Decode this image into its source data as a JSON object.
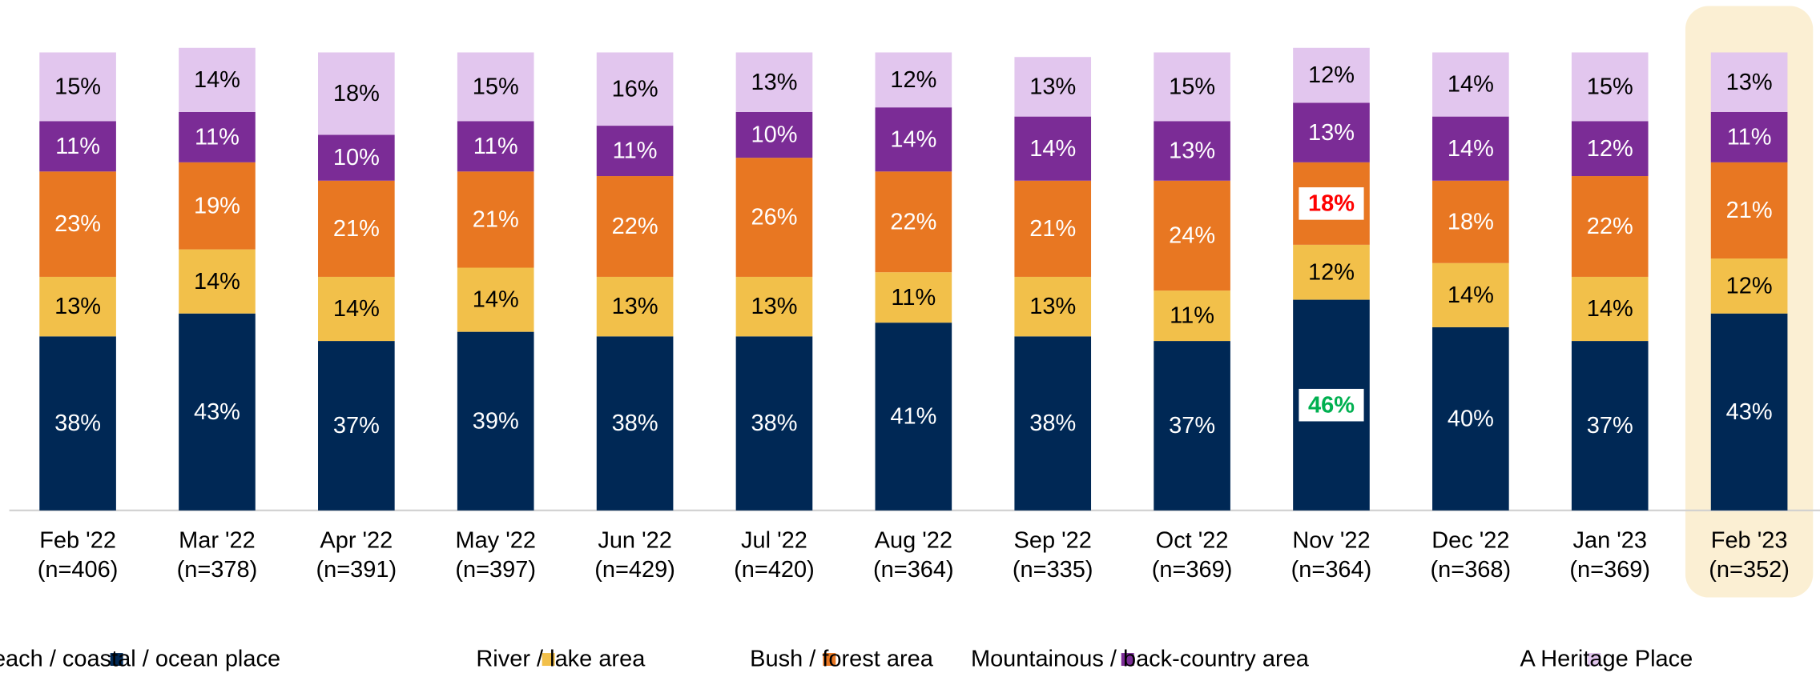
{
  "chart_data": {
    "type": "stacked_bar",
    "categories": [
      "Feb '22",
      "Mar '22",
      "Apr '22",
      "May '22",
      "Jun '22",
      "Jul '22",
      "Aug '22",
      "Sep '22",
      "Oct '22",
      "Nov '22",
      "Dec '22",
      "Jan '23",
      "Feb '23"
    ],
    "sample_sizes": [
      "(n=406)",
      "(n=378)",
      "(n=391)",
      "(n=397)",
      "(n=429)",
      "(n=420)",
      "(n=364)",
      "(n=335)",
      "(n=369)",
      "(n=364)",
      "(n=368)",
      "(n=369)",
      "(n=352)"
    ],
    "ylim": [
      0,
      100
    ],
    "highlighted_category": "Feb '23",
    "series": [
      {
        "name": "Beach / coastal / ocean place",
        "color": "#002855",
        "label_color": "#ffffff",
        "values": [
          38,
          43,
          37,
          39,
          38,
          38,
          41,
          38,
          37,
          46,
          40,
          37,
          43
        ],
        "value_labels": [
          "38%",
          "43%",
          "37%",
          "39%",
          "38%",
          "38%",
          "41%",
          "38%",
          "37%",
          "46%",
          "40%",
          "37%",
          "43%"
        ]
      },
      {
        "name": "River / lake area",
        "color": "#f2c04a",
        "label_color": "#000000",
        "values": [
          13,
          14,
          14,
          14,
          13,
          13,
          11,
          13,
          11,
          12,
          14,
          14,
          12
        ],
        "value_labels": [
          "13%",
          "14%",
          "14%",
          "14%",
          "13%",
          "13%",
          "11%",
          "13%",
          "11%",
          "12%",
          "14%",
          "14%",
          "12%"
        ]
      },
      {
        "name": "Bush / forest area",
        "color": "#e87722",
        "label_color": "#ffffff",
        "values": [
          23,
          19,
          21,
          21,
          22,
          26,
          22,
          21,
          24,
          18,
          18,
          22,
          21
        ],
        "value_labels": [
          "23%",
          "19%",
          "21%",
          "21%",
          "22%",
          "26%",
          "22%",
          "21%",
          "24%",
          "18%",
          "18%",
          "22%",
          "21%"
        ]
      },
      {
        "name": "Mountainous / back-country area",
        "color": "#7b2c96",
        "label_color": "#ffffff",
        "values": [
          11,
          11,
          10,
          11,
          11,
          10,
          14,
          14,
          13,
          13,
          14,
          12,
          11
        ],
        "value_labels": [
          "11%",
          "11%",
          "10%",
          "11%",
          "11%",
          "10%",
          "14%",
          "14%",
          "13%",
          "13%",
          "14%",
          "12%",
          "11%"
        ]
      },
      {
        "name": "A Heritage Place",
        "color": "#e2c6ee",
        "label_color": "#000000",
        "values": [
          15,
          14,
          18,
          15,
          16,
          13,
          12,
          13,
          15,
          12,
          14,
          15,
          13
        ],
        "value_labels": [
          "15%",
          "14%",
          "18%",
          "15%",
          "16%",
          "13%",
          "12%",
          "13%",
          "15%",
          "12%",
          "14%",
          "15%",
          "13%"
        ]
      }
    ],
    "callouts": [
      {
        "series": 0,
        "index": 9,
        "color": "#00b050"
      },
      {
        "series": 2,
        "index": 9,
        "color": "#ff0000"
      }
    ]
  }
}
